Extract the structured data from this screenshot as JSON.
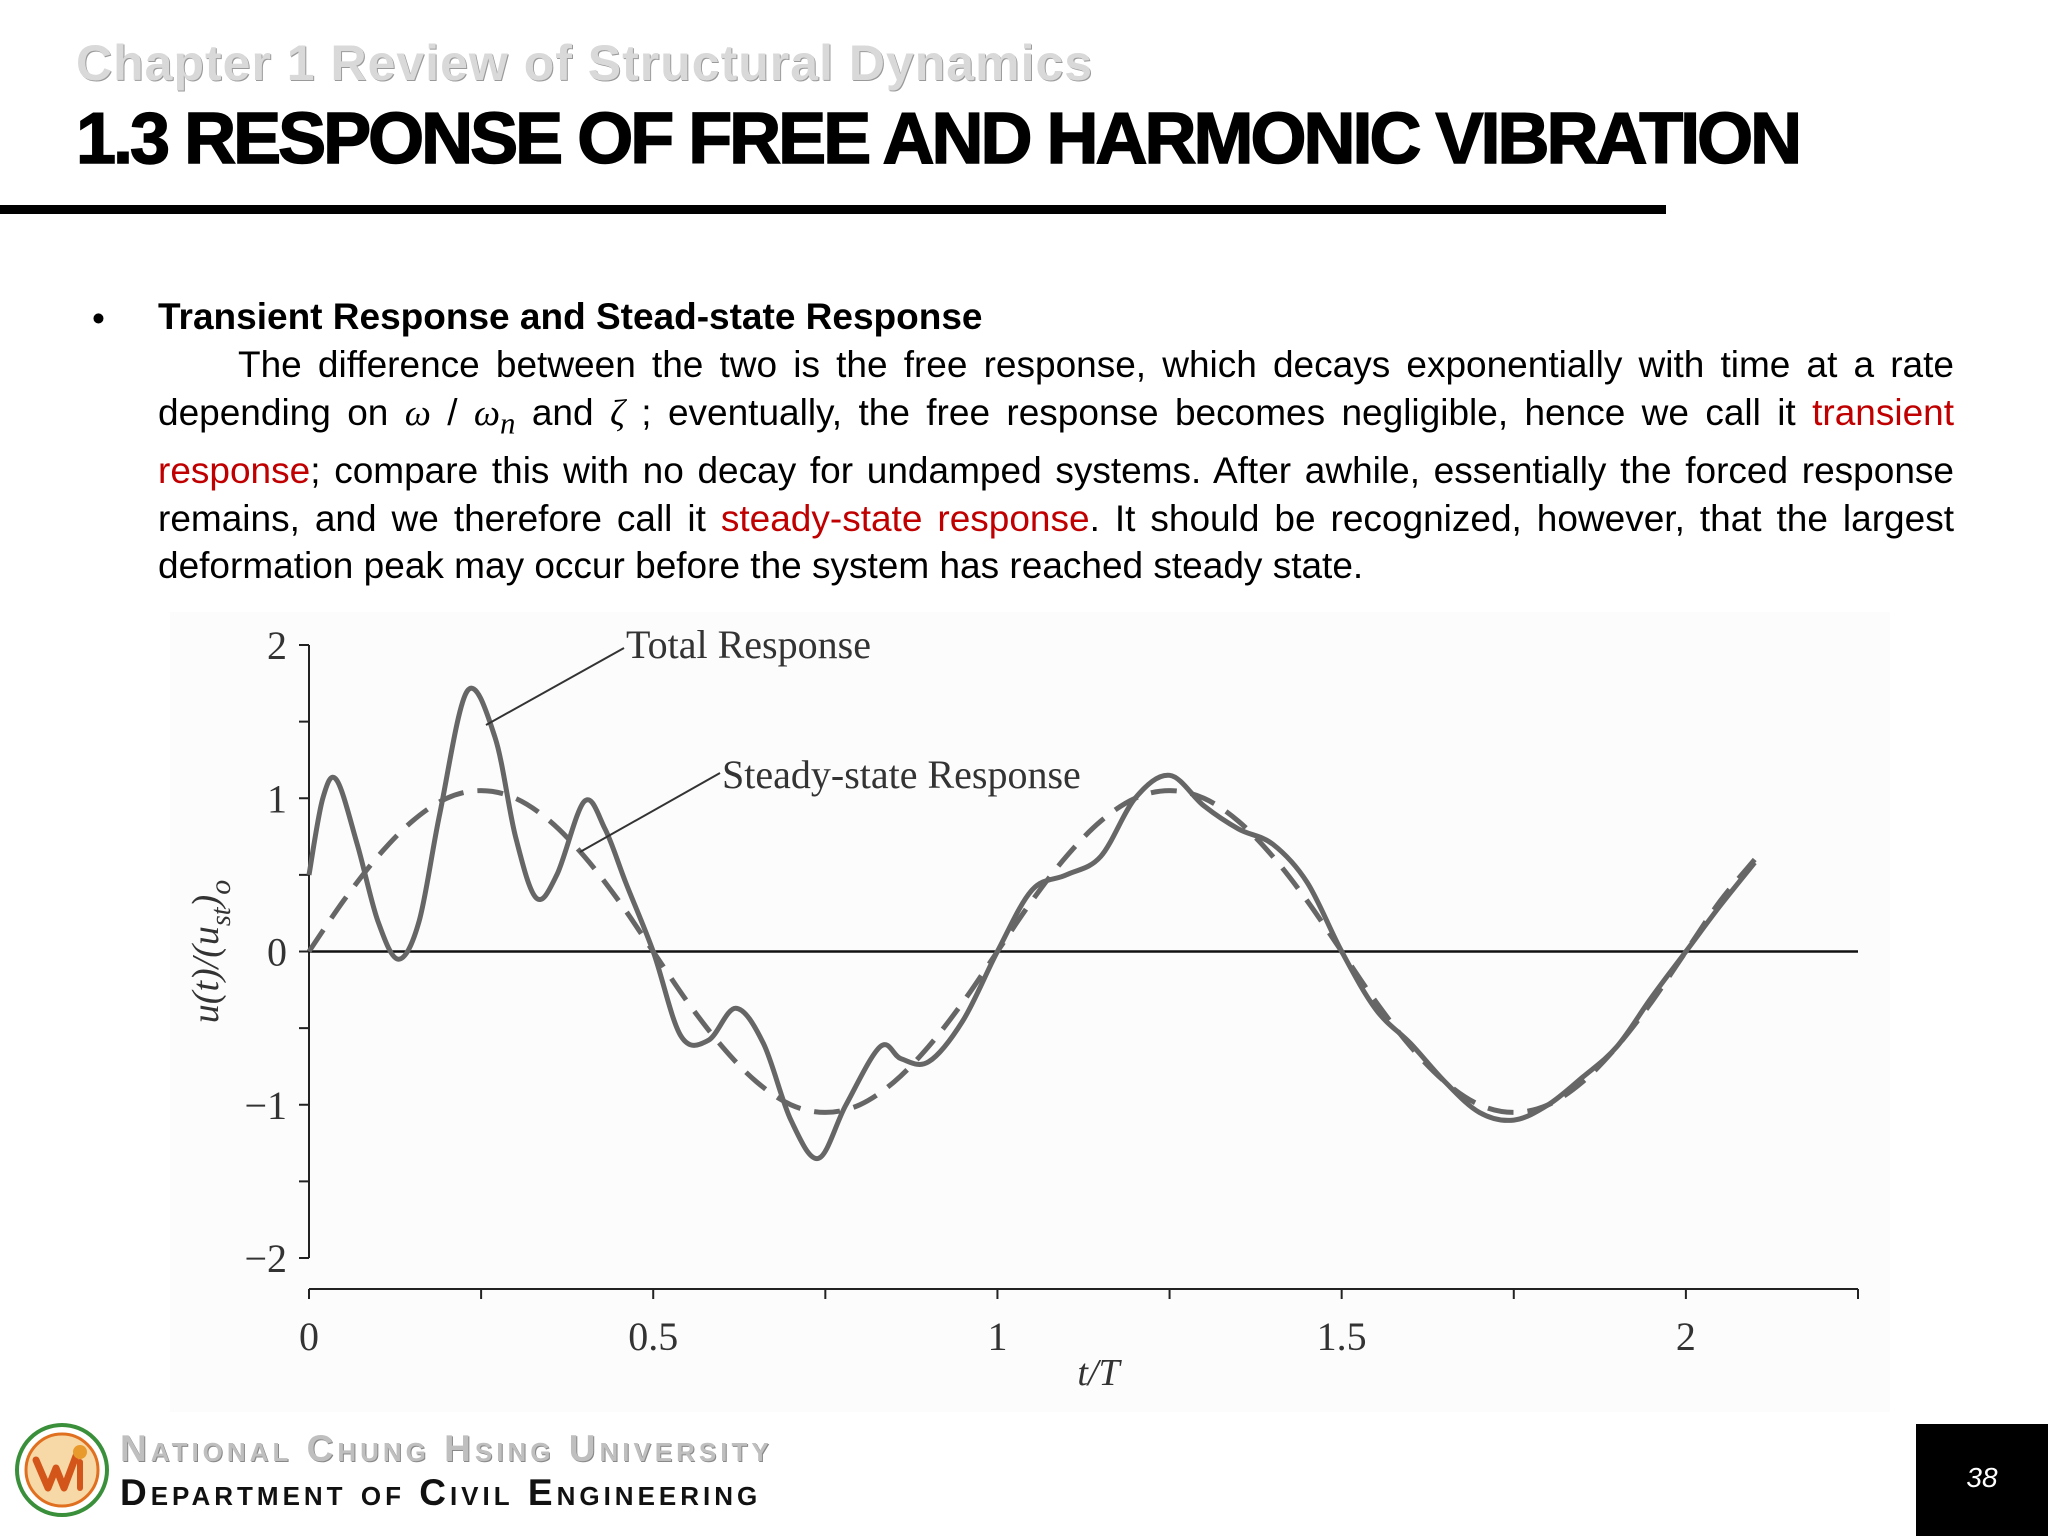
{
  "header": {
    "chapter": "Chapter 1 Review of Structural Dynamics",
    "title": "1.3 RESPONSE OF FREE AND HARMONIC VIBRATION"
  },
  "content": {
    "bullet": "•",
    "heading": "Transient Response and Stead-state Response",
    "para": {
      "t1": "The difference between the two is the free response, which decays exponentially with time at a rate depending on ",
      "omega": "ω",
      "slash": " / ",
      "omega_n": "ω",
      "sub_n": "n",
      "t2": " and ",
      "zeta": "ζ",
      "t3": " ; eventually, the free response becomes negligible, hence we call it ",
      "highlight1": "transient response",
      "t4": "; compare this with no decay for undamped systems. After awhile, essentially the forced response remains, and we therefore call it ",
      "highlight2": "steady-state response",
      "t5": ". It should be recognized, however, that the largest deformation peak may occur before the system has reached steady state."
    },
    "highlight_color": "#c00000"
  },
  "chart_data": {
    "type": "line",
    "xlabel": "t/T",
    "ylabel": "u(t)/(u_st)_o",
    "ylabel_parts": {
      "main": "u(t)/(u",
      "sub": "st",
      "tail": ")",
      "o": "o"
    },
    "xlim": [
      0,
      2.25
    ],
    "ylim": [
      -2,
      2
    ],
    "xticks": [
      0,
      0.5,
      1,
      1.5,
      2
    ],
    "xtick_labels": [
      "0",
      "0.5",
      "1",
      "1.5",
      "2"
    ],
    "yticks": [
      2,
      1,
      0,
      -1,
      -2
    ],
    "ytick_labels": [
      "2",
      "1",
      "0",
      "−1",
      "−2"
    ],
    "annotations": [
      {
        "text": "Total Response"
      },
      {
        "text": "Steady-state Response"
      }
    ],
    "series": [
      {
        "name": "Total Response",
        "style": "solid",
        "x": [
          0,
          0.02,
          0.04,
          0.07,
          0.1,
          0.13,
          0.16,
          0.19,
          0.23,
          0.27,
          0.3,
          0.33,
          0.36,
          0.4,
          0.43,
          0.46,
          0.5,
          0.54,
          0.58,
          0.62,
          0.66,
          0.7,
          0.74,
          0.78,
          0.83,
          0.86,
          0.9,
          0.95,
          1.0,
          1.05,
          1.1,
          1.15,
          1.2,
          1.25,
          1.3,
          1.35,
          1.4,
          1.45,
          1.5,
          1.55,
          1.6,
          1.65,
          1.7,
          1.75,
          1.8,
          1.85,
          1.9,
          1.95,
          2.0,
          2.05,
          2.1
        ],
        "y": [
          0.5,
          1.0,
          1.12,
          0.7,
          0.2,
          -0.05,
          0.2,
          0.9,
          1.7,
          1.4,
          0.75,
          0.35,
          0.5,
          0.98,
          0.8,
          0.45,
          0.0,
          -0.55,
          -0.58,
          -0.37,
          -0.6,
          -1.1,
          -1.35,
          -1.0,
          -0.62,
          -0.7,
          -0.72,
          -0.45,
          0.0,
          0.4,
          0.5,
          0.62,
          1.0,
          1.15,
          0.95,
          0.8,
          0.7,
          0.45,
          0.0,
          -0.38,
          -0.6,
          -0.85,
          -1.05,
          -1.1,
          -1.0,
          -0.82,
          -0.62,
          -0.3,
          0.0,
          0.3,
          0.58
        ]
      },
      {
        "name": "Steady-state Response",
        "style": "dashed",
        "x": [
          0,
          0.05,
          0.1,
          0.15,
          0.2,
          0.25,
          0.3,
          0.35,
          0.4,
          0.45,
          0.5,
          0.55,
          0.6,
          0.65,
          0.7,
          0.75,
          0.8,
          0.85,
          0.9,
          0.95,
          1.0,
          1.05,
          1.1,
          1.15,
          1.2,
          1.25,
          1.3,
          1.35,
          1.4,
          1.45,
          1.5,
          1.55,
          1.6,
          1.65,
          1.7,
          1.75,
          1.8,
          1.85,
          1.9,
          1.95,
          2.0,
          2.05,
          2.1
        ],
        "y": [
          0.0,
          0.33,
          0.62,
          0.85,
          1.0,
          1.05,
          1.0,
          0.85,
          0.62,
          0.33,
          0.0,
          -0.33,
          -0.62,
          -0.85,
          -1.0,
          -1.05,
          -1.0,
          -0.85,
          -0.62,
          -0.33,
          0.0,
          0.33,
          0.62,
          0.85,
          1.0,
          1.05,
          1.0,
          0.85,
          0.62,
          0.33,
          0.0,
          -0.33,
          -0.62,
          -0.85,
          -1.0,
          -1.05,
          -1.0,
          -0.85,
          -0.62,
          -0.33,
          0.0,
          0.33,
          0.6
        ]
      }
    ]
  },
  "footer": {
    "university": "National Chung Hsing University",
    "department": "Department of Civil Engineering",
    "page": "38"
  }
}
